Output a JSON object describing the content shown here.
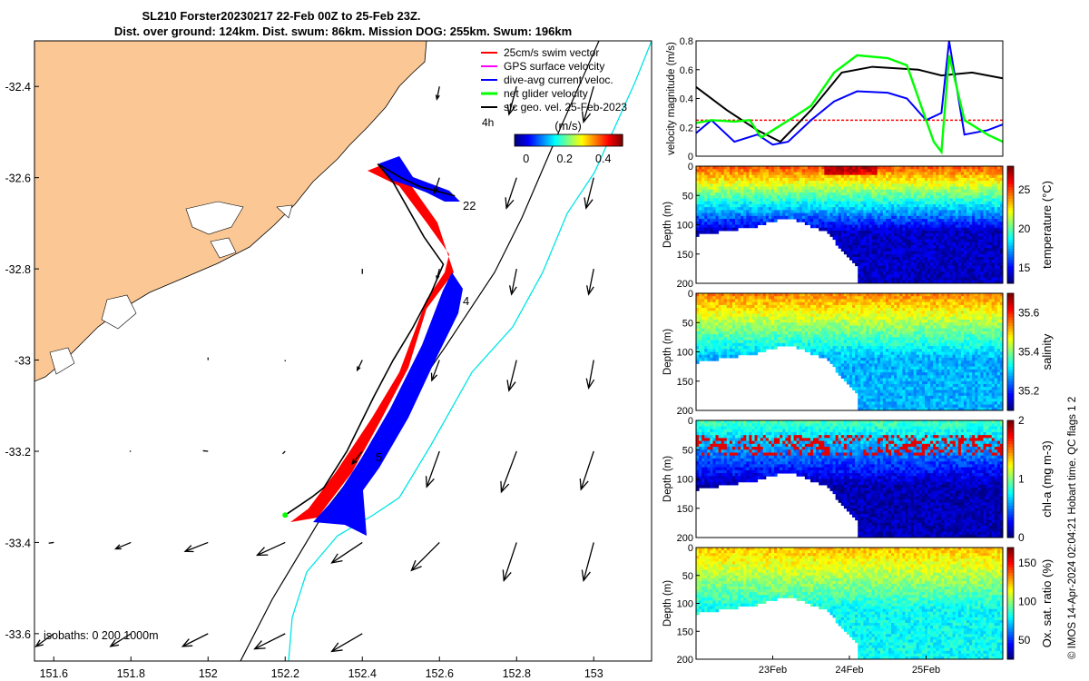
{
  "header": {
    "line1": "SL210 Forster20230217 22-Feb 00Z to 25-Feb 23Z.",
    "line2": "Dist. over ground: 124km. Dist. swum: 86km. Mission DOG: 255km. Swum: 196km"
  },
  "chart_data": [
    {
      "type": "map",
      "x_ticks": [
        "151.6",
        "151.8",
        "152",
        "152.2",
        "152.4",
        "152.6",
        "152.8",
        "153"
      ],
      "x_tick_values": [
        151.6,
        151.8,
        152.0,
        152.2,
        152.4,
        152.6,
        152.8,
        153.0
      ],
      "y_ticks": [
        "-32.4",
        "-32.6",
        "-32.8",
        "-33",
        "-33.2",
        "-33.4",
        "-33.6"
      ],
      "y_tick_values": [
        -32.4,
        -32.6,
        -32.8,
        -33.0,
        -33.2,
        -33.4,
        -33.6
      ],
      "xlim": [
        151.55,
        153.15
      ],
      "ylim": [
        -33.66,
        -32.3
      ],
      "legend": [
        {
          "label": "25cm/s swim vector",
          "color": "#ff0000"
        },
        {
          "label": "GPS surface velocity",
          "color": "#ff00ff"
        },
        {
          "label": "dive-avg current veloc.",
          "color": "#0000ff"
        },
        {
          "label": "net glider velocity",
          "color": "#00ff00"
        },
        {
          "label": "sfc geo. vel. 25-Feb-2023",
          "color": "#000000"
        }
      ],
      "legend_extra": "4h",
      "colorbar": {
        "label": "(m/s)",
        "ticks": [
          "0",
          "0.2",
          "0.4"
        ],
        "tick_values": [
          0,
          0.2,
          0.4
        ],
        "range": [
          -0.06,
          0.5
        ]
      },
      "isobaths_label": "isobaths: 0   200  1000m",
      "track_labels": [
        "22",
        "4",
        "5"
      ],
      "glider_track": [
        [
          152.2,
          -33.34
        ],
        [
          152.27,
          -33.3
        ],
        [
          152.3,
          -33.28
        ],
        [
          152.36,
          -33.2
        ],
        [
          152.43,
          -33.08
        ],
        [
          152.48,
          -33.0
        ],
        [
          152.53,
          -32.93
        ],
        [
          152.58,
          -32.85
        ],
        [
          152.61,
          -32.79
        ],
        [
          152.56,
          -32.73
        ],
        [
          152.52,
          -32.67
        ],
        [
          152.48,
          -32.61
        ],
        [
          152.44,
          -32.57
        ],
        [
          152.5,
          -32.6
        ],
        [
          152.55,
          -32.62
        ],
        [
          152.64,
          -32.64
        ]
      ],
      "geostrophic_arrows": [
        {
          "lon": 151.6,
          "lat": -33.4,
          "u": -0.02,
          "v": -0.003
        },
        {
          "lon": 151.8,
          "lat": -33.4,
          "u": -0.06,
          "v": -0.025
        },
        {
          "lon": 152.0,
          "lat": -33.4,
          "u": -0.09,
          "v": -0.035
        },
        {
          "lon": 152.2,
          "lat": -33.4,
          "u": -0.11,
          "v": -0.05
        },
        {
          "lon": 152.4,
          "lat": -33.4,
          "u": -0.12,
          "v": -0.08
        },
        {
          "lon": 152.6,
          "lat": -33.4,
          "u": -0.11,
          "v": -0.11
        },
        {
          "lon": 152.8,
          "lat": -33.4,
          "u": -0.05,
          "v": -0.15
        },
        {
          "lon": 153.0,
          "lat": -33.4,
          "u": -0.04,
          "v": -0.15
        },
        {
          "lon": 151.8,
          "lat": -33.2,
          "u": -0.005,
          "v": 0.0
        },
        {
          "lon": 152.0,
          "lat": -33.2,
          "u": -0.02,
          "v": 0.002
        },
        {
          "lon": 152.2,
          "lat": -33.2,
          "u": -0.01,
          "v": -0.01
        },
        {
          "lon": 152.4,
          "lat": -33.2,
          "u": -0.04,
          "v": -0.05
        },
        {
          "lon": 152.6,
          "lat": -33.2,
          "u": -0.05,
          "v": -0.14
        },
        {
          "lon": 152.8,
          "lat": -33.2,
          "u": -0.06,
          "v": -0.16
        },
        {
          "lon": 153.0,
          "lat": -33.2,
          "u": -0.05,
          "v": -0.15
        },
        {
          "lon": 152.0,
          "lat": -33.0,
          "u": 0.0,
          "v": 0.01
        },
        {
          "lon": 152.2,
          "lat": -33.0,
          "u": 0.0,
          "v": -0.005
        },
        {
          "lon": 152.4,
          "lat": -33.0,
          "u": -0.02,
          "v": -0.04
        },
        {
          "lon": 152.6,
          "lat": -33.0,
          "u": -0.03,
          "v": -0.08
        },
        {
          "lon": 152.8,
          "lat": -33.0,
          "u": -0.03,
          "v": -0.12
        },
        {
          "lon": 153.0,
          "lat": -33.0,
          "u": -0.02,
          "v": -0.11
        },
        {
          "lon": 152.4,
          "lat": -32.8,
          "u": 0.0,
          "v": -0.02
        },
        {
          "lon": 152.6,
          "lat": -32.8,
          "u": -0.01,
          "v": -0.04
        },
        {
          "lon": 152.8,
          "lat": -32.8,
          "u": -0.02,
          "v": -0.1
        },
        {
          "lon": 153.0,
          "lat": -32.8,
          "u": -0.02,
          "v": -0.1
        },
        {
          "lon": 152.6,
          "lat": -32.6,
          "u": -0.02,
          "v": -0.06
        },
        {
          "lon": 152.8,
          "lat": -32.6,
          "u": -0.04,
          "v": -0.12
        },
        {
          "lon": 153.0,
          "lat": -32.6,
          "u": -0.03,
          "v": -0.12
        },
        {
          "lon": 152.6,
          "lat": -32.4,
          "u": -0.01,
          "v": -0.05
        },
        {
          "lon": 152.8,
          "lat": -32.4,
          "u": -0.03,
          "v": -0.11
        },
        {
          "lon": 153.0,
          "lat": -32.4,
          "u": -0.04,
          "v": -0.14
        },
        {
          "lon": 151.6,
          "lat": -33.6,
          "u": -0.07,
          "v": -0.05
        },
        {
          "lon": 151.8,
          "lat": -33.6,
          "u": -0.08,
          "v": -0.05
        },
        {
          "lon": 152.0,
          "lat": -33.6,
          "u": -0.1,
          "v": -0.05
        },
        {
          "lon": 152.2,
          "lat": -33.6,
          "u": -0.12,
          "v": -0.06
        },
        {
          "lon": 152.4,
          "lat": -33.6,
          "u": -0.12,
          "v": -0.07
        }
      ]
    },
    {
      "type": "line",
      "ylabel": "velocity magnitude (m/s)",
      "ylim": [
        0,
        0.8
      ],
      "y_ticks": [
        "0",
        "0.2",
        "0.4",
        "0.6",
        "0.8"
      ],
      "y_tick_values": [
        0,
        0.2,
        0.4,
        0.6,
        0.8
      ],
      "xlim": [
        0,
        4
      ],
      "series": [
        {
          "color": "#ff0000",
          "x": [
            0,
            4
          ],
          "y": [
            0.25,
            0.25
          ]
        },
        {
          "color": "#000000",
          "x": [
            0,
            0.4,
            0.8,
            1.1,
            1.5,
            1.9,
            2.3,
            2.9,
            3.2,
            3.6,
            4.0
          ],
          "y": [
            0.48,
            0.32,
            0.18,
            0.1,
            0.32,
            0.58,
            0.62,
            0.6,
            0.56,
            0.58,
            0.54
          ]
        },
        {
          "color": "#0000ff",
          "x": [
            0,
            0.2,
            0.5,
            0.8,
            1.0,
            1.2,
            1.5,
            1.8,
            2.1,
            2.5,
            2.75,
            3.0,
            3.2,
            3.3,
            3.5,
            3.8,
            4.0
          ],
          "y": [
            0.16,
            0.25,
            0.1,
            0.15,
            0.08,
            0.1,
            0.25,
            0.38,
            0.45,
            0.44,
            0.4,
            0.25,
            0.3,
            0.8,
            0.15,
            0.18,
            0.22
          ]
        },
        {
          "color": "#00ff00",
          "x": [
            0,
            0.2,
            0.5,
            0.7,
            0.85,
            1.0,
            1.3,
            1.5,
            1.8,
            2.1,
            2.5,
            2.75,
            3.0,
            3.1,
            3.2,
            3.3,
            3.5,
            3.8,
            4.0
          ],
          "y": [
            0.23,
            0.25,
            0.24,
            0.25,
            0.13,
            0.18,
            0.28,
            0.35,
            0.58,
            0.7,
            0.68,
            0.63,
            0.25,
            0.1,
            0.03,
            0.7,
            0.25,
            0.15,
            0.1
          ]
        }
      ]
    },
    {
      "type": "heatmap",
      "ylabel": "Depth (m)",
      "clabel": "temperature (°C)",
      "ylim": [
        200,
        0
      ],
      "y_ticks": [
        "0",
        "50",
        "100",
        "150",
        "200"
      ],
      "y_tick_values": [
        0,
        50,
        100,
        150,
        200
      ],
      "c_ticks": [
        "15",
        "20",
        "25"
      ],
      "c_tick_values": [
        15,
        20,
        25
      ],
      "crange": [
        13,
        28
      ],
      "profile": {
        "surface": 25,
        "deep": 14
      }
    },
    {
      "type": "heatmap",
      "ylabel": "Depth (m)",
      "clabel": "salinity",
      "ylim": [
        200,
        0
      ],
      "y_ticks": [
        "0",
        "50",
        "100",
        "150",
        "200"
      ],
      "y_tick_values": [
        0,
        50,
        100,
        150,
        200
      ],
      "c_ticks": [
        "35.2",
        "35.4",
        "35.6"
      ],
      "c_tick_values": [
        35.2,
        35.4,
        35.6
      ],
      "crange": [
        35.1,
        35.7
      ],
      "profile": {
        "surface": 35.55,
        "deep": 35.28
      }
    },
    {
      "type": "heatmap",
      "ylabel": "Depth (m)",
      "clabel": "chl-a (mg m-3)",
      "ylim": [
        200,
        0
      ],
      "y_ticks": [
        "0",
        "50",
        "100",
        "150",
        "200"
      ],
      "y_tick_values": [
        0,
        50,
        100,
        150,
        200
      ],
      "c_ticks": [
        "0",
        "1",
        "2"
      ],
      "c_tick_values": [
        0,
        1,
        2
      ],
      "crange": [
        0,
        2
      ],
      "profile": {
        "surface": 0.9,
        "deep": 0.1
      }
    },
    {
      "type": "heatmap",
      "ylabel": "Depth (m)",
      "clabel": "Ox. sat. ratio (%)",
      "ylim": [
        200,
        0
      ],
      "y_ticks": [
        "0",
        "50",
        "100",
        "150",
        "200"
      ],
      "y_tick_values": [
        0,
        50,
        100,
        150,
        200
      ],
      "c_ticks": [
        "50",
        "100",
        "150"
      ],
      "c_tick_values": [
        50,
        100,
        150
      ],
      "crange": [
        25,
        170
      ],
      "profile": {
        "surface": 125,
        "deep": 80
      },
      "x_ticks": [
        "23Feb",
        "24Feb",
        "25Feb"
      ],
      "x_tick_values": [
        1,
        2,
        3
      ]
    }
  ],
  "side_note": "© IMOS 14-Apr-2024 02:04:21 Hobart time. QC flags 1  2"
}
